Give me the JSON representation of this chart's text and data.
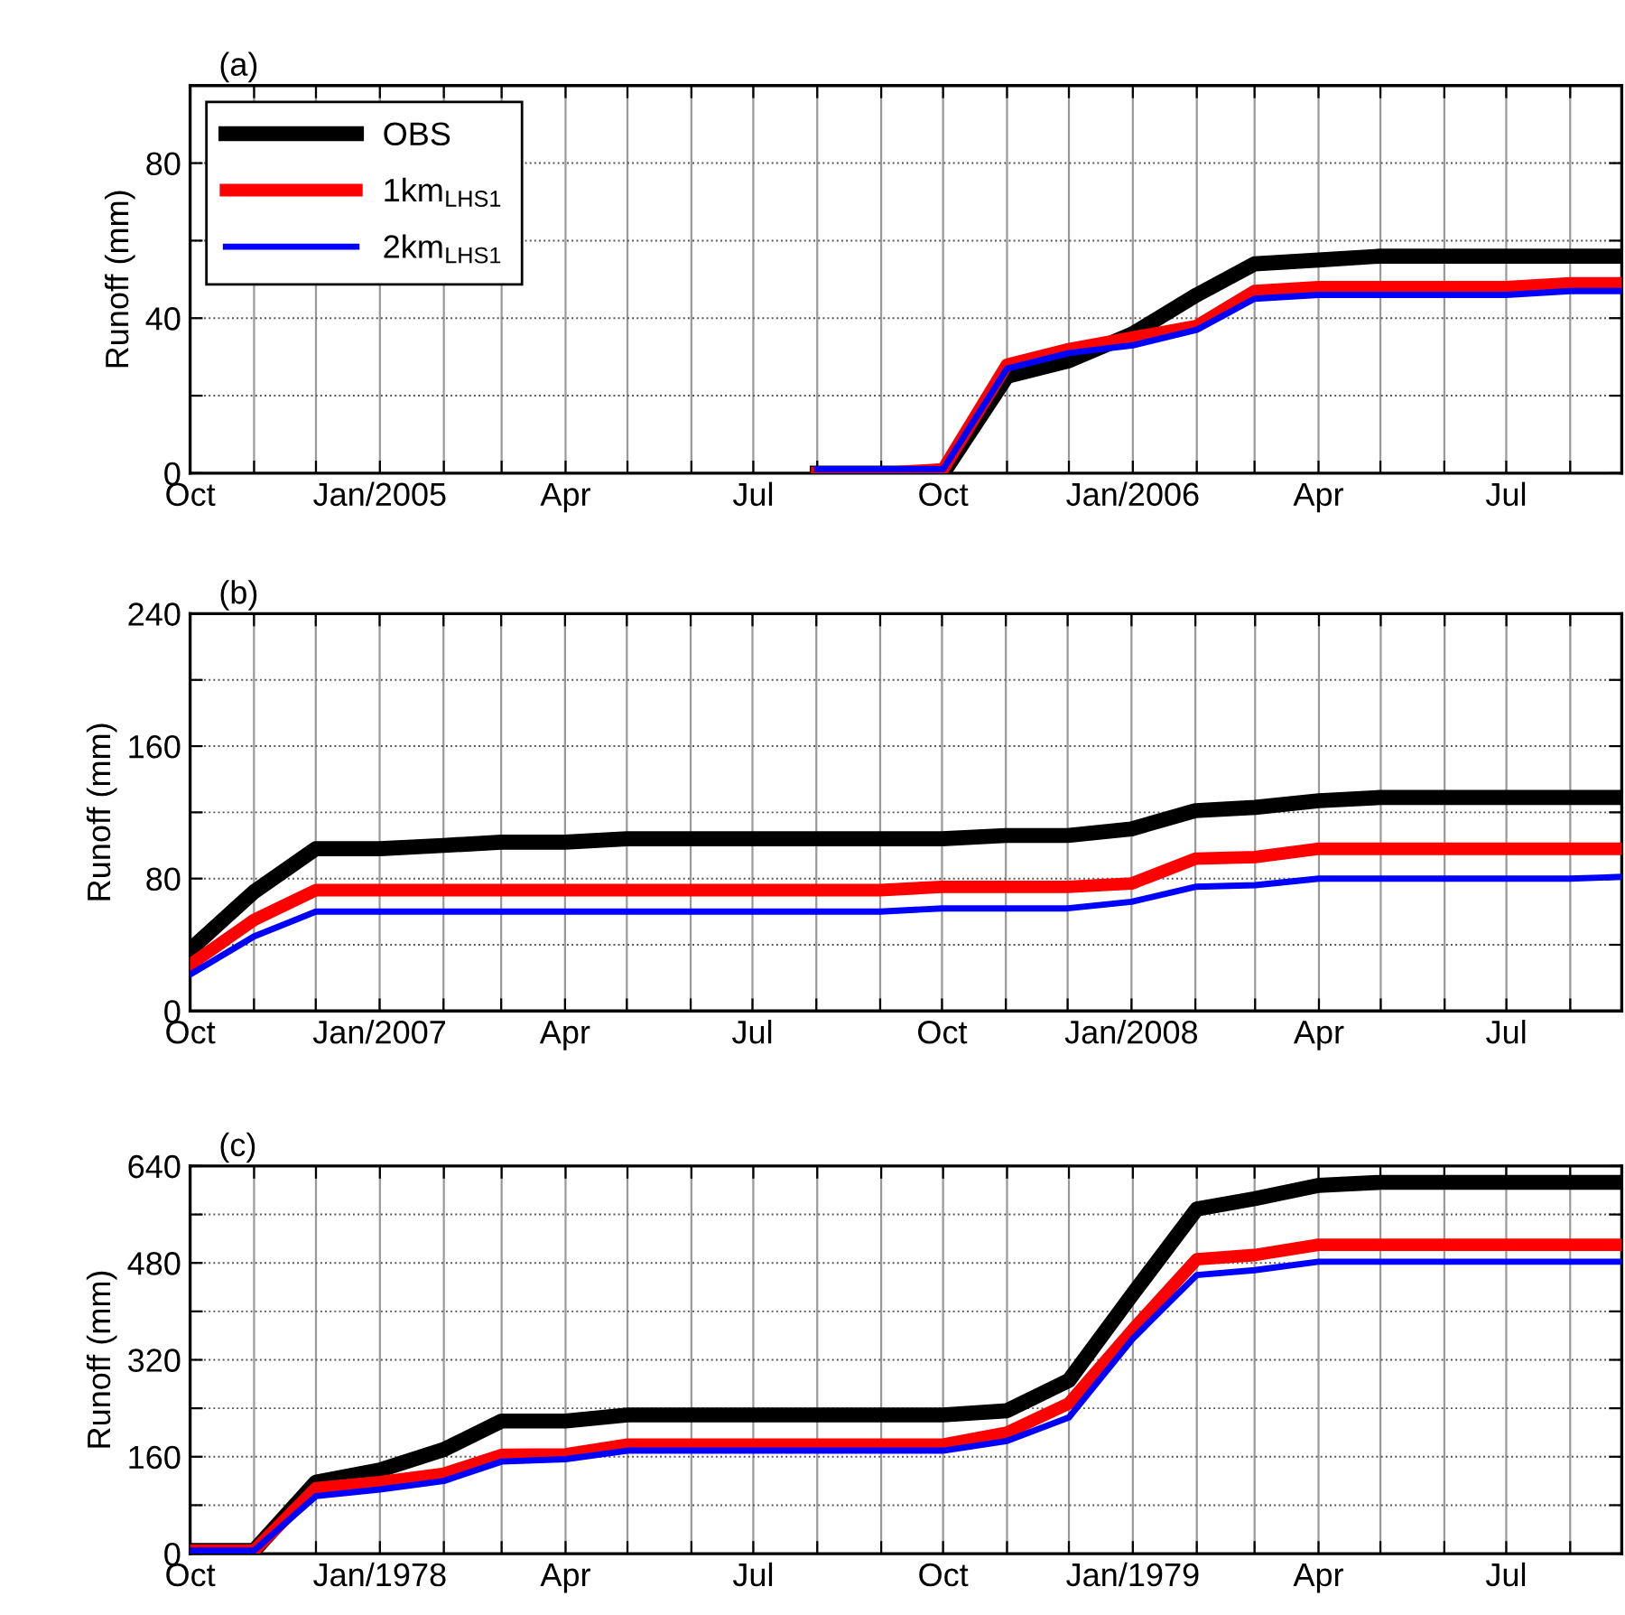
{
  "chart_data": [
    {
      "type": "line",
      "title": "(a)",
      "ylabel": "Runoff (mm)",
      "x": [
        "2005-08",
        "2005-09",
        "2005-10",
        "2005-11",
        "2005-12",
        "2006-01",
        "2006-02",
        "2006-03",
        "2006-04",
        "2006-05",
        "2006-06",
        "2006-07",
        "2006-08",
        "2006-08-26"
      ],
      "series": [
        {
          "name": "OBS",
          "color": "#000000",
          "values": [
            0,
            0,
            0,
            25,
            29,
            36,
            46,
            54,
            55,
            56,
            56,
            56,
            56,
            56
          ]
        },
        {
          "name": "1km$_{LHS1}$",
          "color": "#ff0000",
          "values": [
            0,
            0,
            1,
            28,
            32,
            35,
            38,
            47,
            48,
            48,
            48,
            48,
            49,
            49
          ]
        },
        {
          "name": "2km$_{LHS1}$",
          "color": "#0000ff",
          "values": [
            1,
            1,
            1,
            27,
            31,
            33,
            37,
            45,
            46,
            46,
            46,
            46,
            47,
            47
          ]
        }
      ],
      "xlim": [
        "2004-10",
        "2006-08-26"
      ],
      "xticks": [
        {
          "value": "2004-10",
          "label": "Oct"
        },
        {
          "value": "2004-11",
          "label": null
        },
        {
          "value": "2004-12",
          "label": null
        },
        {
          "value": "2005-01",
          "label": "Jan/2005"
        },
        {
          "value": "2005-02",
          "label": null
        },
        {
          "value": "2005-03",
          "label": null
        },
        {
          "value": "2005-04",
          "label": "Apr"
        },
        {
          "value": "2005-05",
          "label": null
        },
        {
          "value": "2005-06",
          "label": null
        },
        {
          "value": "2005-07",
          "label": "Jul"
        },
        {
          "value": "2005-08",
          "label": null
        },
        {
          "value": "2005-09",
          "label": null
        },
        {
          "value": "2005-10",
          "label": "Oct"
        },
        {
          "value": "2005-11",
          "label": null
        },
        {
          "value": "2005-12",
          "label": null
        },
        {
          "value": "2006-01",
          "label": "Jan/2006"
        },
        {
          "value": "2006-02",
          "label": null
        },
        {
          "value": "2006-03",
          "label": null
        },
        {
          "value": "2006-04",
          "label": "Apr"
        },
        {
          "value": "2006-05",
          "label": null
        },
        {
          "value": "2006-06",
          "label": null
        },
        {
          "value": "2006-07",
          "label": "Jul"
        },
        {
          "value": "2006-08",
          "label": null
        }
      ],
      "ylim": [
        0,
        100
      ],
      "yticks": [
        0,
        {
          "value": 20,
          "label": null
        },
        40,
        {
          "value": 60,
          "label": null
        },
        80,
        {
          "value": 100,
          "label": null
        }
      ],
      "grid": true,
      "legend": "top left"
    },
    {
      "type": "line",
      "title": "(b)",
      "ylabel": "Runoff (mm)",
      "x": [
        "2006-10",
        "2006-11",
        "2006-12",
        "2007-01",
        "2007-02",
        "2007-03",
        "2007-04",
        "2007-05",
        "2007-06",
        "2007-07",
        "2007-08",
        "2007-09",
        "2007-10",
        "2007-11",
        "2007-12",
        "2008-01",
        "2008-02",
        "2008-03",
        "2008-04",
        "2008-05",
        "2008-06",
        "2008-07",
        "2008-08",
        "2008-08-26"
      ],
      "series": [
        {
          "color": "#000000",
          "values": [
            37,
            72,
            98,
            98,
            100,
            102,
            102,
            104,
            104,
            104,
            104,
            104,
            104,
            106,
            106,
            110,
            121,
            123,
            127,
            129,
            129,
            129,
            129,
            129
          ]
        },
        {
          "color": "#ff0000",
          "values": [
            28,
            55,
            73,
            73,
            73,
            73,
            73,
            73,
            73,
            73,
            73,
            73,
            75,
            75,
            75,
            77,
            92,
            93,
            98,
            98,
            98,
            98,
            98,
            98
          ]
        },
        {
          "color": "#0000ff",
          "values": [
            22,
            45,
            60,
            60,
            60,
            60,
            60,
            60,
            60,
            60,
            60,
            60,
            62,
            62,
            62,
            66,
            75,
            76,
            80,
            80,
            80,
            80,
            80,
            81
          ]
        }
      ],
      "xlim": [
        "2006-10",
        "2008-08-26"
      ],
      "xticks": [
        {
          "value": "2006-10",
          "label": "Oct"
        },
        {
          "value": "2006-11",
          "label": null
        },
        {
          "value": "2006-12",
          "label": null
        },
        {
          "value": "2007-01",
          "label": "Jan/2007"
        },
        {
          "value": "2007-02",
          "label": null
        },
        {
          "value": "2007-03",
          "label": null
        },
        {
          "value": "2007-04",
          "label": "Apr"
        },
        {
          "value": "2007-05",
          "label": null
        },
        {
          "value": "2007-06",
          "label": null
        },
        {
          "value": "2007-07",
          "label": "Jul"
        },
        {
          "value": "2007-08",
          "label": null
        },
        {
          "value": "2007-09",
          "label": null
        },
        {
          "value": "2007-10",
          "label": "Oct"
        },
        {
          "value": "2007-11",
          "label": null
        },
        {
          "value": "2007-12",
          "label": null
        },
        {
          "value": "2008-01",
          "label": "Jan/2008"
        },
        {
          "value": "2008-02",
          "label": null
        },
        {
          "value": "2008-03",
          "label": null
        },
        {
          "value": "2008-04",
          "label": "Apr"
        },
        {
          "value": "2008-05",
          "label": null
        },
        {
          "value": "2008-06",
          "label": null
        },
        {
          "value": "2008-07",
          "label": "Jul"
        },
        {
          "value": "2008-08",
          "label": null
        }
      ],
      "ylim": [
        0,
        240
      ],
      "yticks": [
        0,
        {
          "value": 40,
          "label": null
        },
        80,
        {
          "value": 120,
          "label": null
        },
        160,
        {
          "value": 200,
          "label": null
        },
        240
      ],
      "grid": true
    },
    {
      "type": "line",
      "title": "(c)",
      "ylabel": "Runoff (mm)",
      "x": [
        "1977-10",
        "1977-11",
        "1977-12",
        "1978-01",
        "1978-02",
        "1978-03",
        "1978-04",
        "1978-05",
        "1978-06",
        "1978-07",
        "1978-08",
        "1978-09",
        "1978-10",
        "1978-11",
        "1978-12",
        "1979-01",
        "1979-02",
        "1979-03",
        "1979-04",
        "1979-05",
        "1979-06",
        "1979-07",
        "1979-08",
        "1979-08-26"
      ],
      "series": [
        {
          "color": "#000000",
          "values": [
            5,
            5,
            118,
            138,
            172,
            219,
            219,
            229,
            229,
            229,
            229,
            229,
            229,
            236,
            286,
            429,
            569,
            586,
            608,
            613,
            613,
            613,
            613,
            613
          ]
        },
        {
          "color": "#ff0000",
          "values": [
            5,
            5,
            108,
            118,
            132,
            163,
            164,
            180,
            180,
            180,
            180,
            180,
            180,
            200,
            248,
            370,
            486,
            493,
            510,
            510,
            510,
            510,
            510,
            510
          ]
        },
        {
          "color": "#0000ff",
          "values": [
            5,
            5,
            95,
            106,
            120,
            152,
            156,
            170,
            170,
            170,
            170,
            170,
            170,
            186,
            225,
            355,
            460,
            468,
            482,
            482,
            482,
            482,
            482,
            482
          ]
        }
      ],
      "xlim": [
        "1977-10",
        "1979-08-26"
      ],
      "xticks": [
        {
          "value": "1977-10",
          "label": "Oct"
        },
        {
          "value": "1977-11",
          "label": null
        },
        {
          "value": "1977-12",
          "label": null
        },
        {
          "value": "1978-01",
          "label": "Jan/1978"
        },
        {
          "value": "1978-02",
          "label": null
        },
        {
          "value": "1978-03",
          "label": null
        },
        {
          "value": "1978-04",
          "label": "Apr"
        },
        {
          "value": "1978-05",
          "label": null
        },
        {
          "value": "1978-06",
          "label": null
        },
        {
          "value": "1978-07",
          "label": "Jul"
        },
        {
          "value": "1978-08",
          "label": null
        },
        {
          "value": "1978-09",
          "label": null
        },
        {
          "value": "1978-10",
          "label": "Oct"
        },
        {
          "value": "1978-11",
          "label": null
        },
        {
          "value": "1978-12",
          "label": null
        },
        {
          "value": "1979-01",
          "label": "Jan/1979"
        },
        {
          "value": "1979-02",
          "label": null
        },
        {
          "value": "1979-03",
          "label": null
        },
        {
          "value": "1979-04",
          "label": "Apr"
        },
        {
          "value": "1979-05",
          "label": null
        },
        {
          "value": "1979-06",
          "label": null
        },
        {
          "value": "1979-07",
          "label": "Jul"
        },
        {
          "value": "1979-08",
          "label": null
        }
      ],
      "ylim": [
        0,
        640
      ],
      "yticks": [
        0,
        {
          "value": 80,
          "label": null
        },
        160,
        {
          "value": 240,
          "label": null
        },
        320,
        {
          "value": 400,
          "label": null
        },
        480,
        {
          "value": 560,
          "label": null
        },
        640
      ],
      "grid": true
    }
  ]
}
